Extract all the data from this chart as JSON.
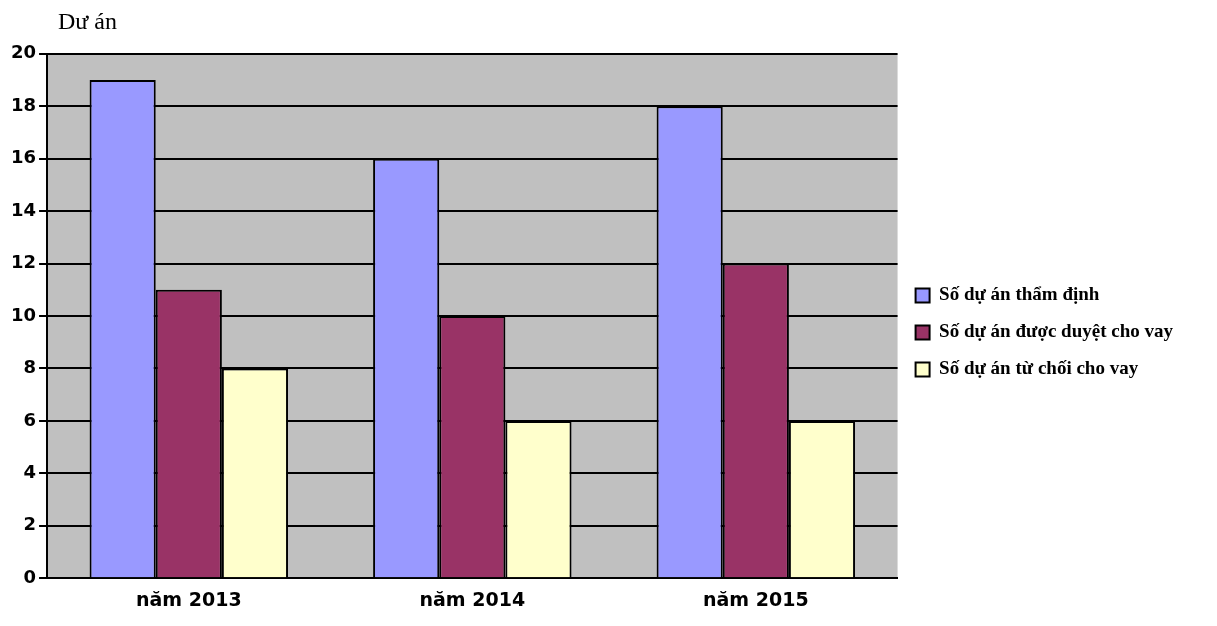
{
  "chart_data": {
    "type": "bar",
    "ylabel": "Dư án",
    "categories": [
      "năm 2013",
      "năm 2014",
      "năm 2015"
    ],
    "series": [
      {
        "name": "Số dự án thẩm định",
        "color": "#9999ff",
        "values": [
          19,
          16,
          18
        ]
      },
      {
        "name": "Số dự án được duyệt cho vay",
        "color": "#993366",
        "values": [
          11,
          10,
          12
        ]
      },
      {
        "name": "Số dự án từ chối cho vay",
        "color": "#ffffcc",
        "values": [
          8,
          6,
          6
        ]
      }
    ],
    "ylim": [
      0,
      20
    ],
    "yticks": [
      0,
      2,
      4,
      6,
      8,
      10,
      12,
      14,
      16,
      18,
      20
    ],
    "grid": "y",
    "legend": "right"
  }
}
